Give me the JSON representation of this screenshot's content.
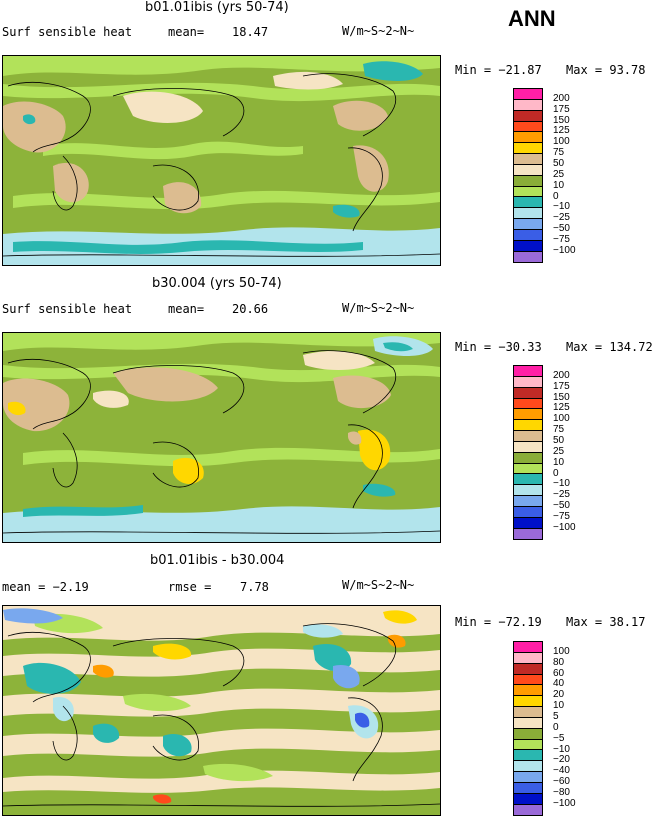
{
  "header": {
    "season": "ANN"
  },
  "units": "W/m~S~2~N~",
  "panels": [
    {
      "id": "top",
      "title": "b01.01ibis (yrs 50-74)",
      "left_label": "Surf sensible heat",
      "stat_label": "mean=",
      "stat_value": "18.47",
      "min_text": "Min = −21.87",
      "max_text": "Max =  93.78"
    },
    {
      "id": "middle",
      "title": "b30.004 (yrs 50-74)",
      "left_label": "Surf sensible heat",
      "stat_label": "mean=",
      "stat_value": "20.66",
      "min_text": "Min = −30.33",
      "max_text": "Max = 134.72"
    },
    {
      "id": "bottom",
      "title": "b01.01ibis - b30.004",
      "left_label": "mean =   −2.19",
      "stat_label": "rmse =",
      "stat_value": "7.78",
      "min_text": "Min = −72.19",
      "max_text": "Max =  38.17"
    }
  ],
  "chart_data": [
    {
      "type": "heatmap",
      "title": "b01.01ibis (yrs 50-74)",
      "variable": "Surf sensible heat",
      "units": "W/m~S~2~N~",
      "mean": 18.47,
      "min": -21.87,
      "max": 93.78,
      "legend_levels": [
        "200",
        "175",
        "150",
        "125",
        "100",
        "75",
        "50",
        "25",
        "10",
        "0",
        "−10",
        "−25",
        "−50",
        "−75",
        "−100"
      ]
    },
    {
      "type": "heatmap",
      "title": "b30.004 (yrs 50-74)",
      "variable": "Surf sensible heat",
      "units": "W/m~S~2~N~",
      "mean": 20.66,
      "min": -30.33,
      "max": 134.72,
      "legend_levels": [
        "200",
        "175",
        "150",
        "125",
        "100",
        "75",
        "50",
        "25",
        "10",
        "0",
        "−10",
        "−25",
        "−50",
        "−75",
        "−100"
      ]
    },
    {
      "type": "heatmap",
      "title": "b01.01ibis - b30.004",
      "units": "W/m~S~2~N~",
      "mean": -2.19,
      "rmse": 7.78,
      "min": -72.19,
      "max": 38.17,
      "legend_levels": [
        "100",
        "80",
        "60",
        "40",
        "20",
        "10",
        "5",
        "0",
        "−5",
        "−10",
        "−20",
        "−40",
        "−60",
        "−80",
        "−100"
      ]
    }
  ],
  "legend_colors_abs": [
    "#ff1fa6",
    "#ffb8c8",
    "#c02a26",
    "#ff4a1c",
    "#ff9c00",
    "#ffd700",
    "#dcbc90",
    "#f6e4c4",
    "#8aad38",
    "#b2e25a",
    "#2ab7b0",
    "#b2e4ec",
    "#79a8ee",
    "#3a5ee6",
    "#0010c8",
    "#9a6ad8"
  ],
  "legend_colors_diff": [
    "#ff1fa6",
    "#ffb8c8",
    "#c02a26",
    "#ff4a1c",
    "#ff9c00",
    "#ffd700",
    "#dcbc90",
    "#f6e4c4",
    "#8aad38",
    "#b2e25a",
    "#2ab7b0",
    "#b2e4ec",
    "#79a8ee",
    "#3a5ee6",
    "#0010c8",
    "#9a6ad8"
  ]
}
